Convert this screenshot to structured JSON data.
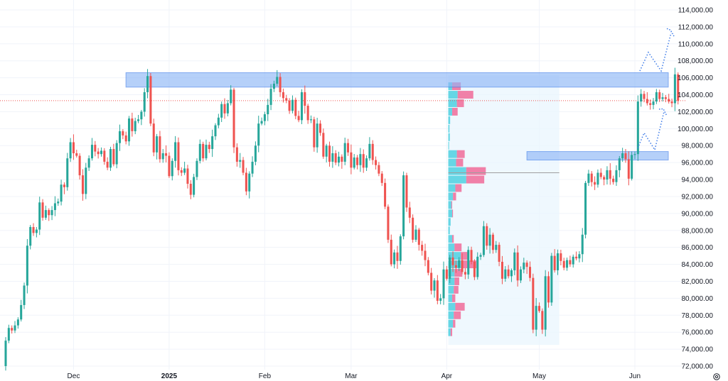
{
  "chart_data": {
    "type": "candlestick",
    "title": "",
    "xlabel": "",
    "ylabel": "",
    "ylim": [
      71500,
      115000
    ],
    "y_ticks": [
      72000,
      74000,
      76000,
      78000,
      80000,
      82000,
      84000,
      86000,
      88000,
      90000,
      92000,
      94000,
      96000,
      98000,
      100000,
      102000,
      104000,
      106000,
      108000,
      110000,
      112000,
      114000
    ],
    "y_tick_labels": [
      "72,000.00",
      "74,000.00",
      "76,000.00",
      "78,000.00",
      "80,000.00",
      "82,000.00",
      "84,000.00",
      "86,000.00",
      "88,000.00",
      "90,000.00",
      "92,000.00",
      "94,000.00",
      "96,000.00",
      "98,000.00",
      "100,000.00",
      "102,000.00",
      "104,000.00",
      "106,000.00",
      "108,000.00",
      "110,000.00",
      "112,000.00",
      "114,000.00"
    ],
    "x_labels": [
      {
        "text": "Dec",
        "bar": 22,
        "bold": false
      },
      {
        "text": "2025",
        "bar": 53,
        "bold": true
      },
      {
        "text": "Feb",
        "bar": 84,
        "bold": false
      },
      {
        "text": "Mar",
        "bar": 112,
        "bold": false
      },
      {
        "text": "Apr",
        "bar": 143,
        "bold": false
      },
      {
        "text": "May",
        "bar": 173,
        "bold": false
      },
      {
        "text": "Jun",
        "bar": 204,
        "bold": false
      }
    ],
    "x_range": [
      -2,
      223
    ],
    "grid": true,
    "closes": [
      75000,
      76500,
      76200,
      76800,
      77500,
      79200,
      81500,
      86200,
      88400,
      87700,
      88100,
      91300,
      89500,
      90400,
      89800,
      90400,
      91200,
      91400,
      93400,
      93100,
      96500,
      98400,
      97100,
      96800,
      94500,
      92300,
      95400,
      96500,
      98100,
      97300,
      97000,
      97400,
      96100,
      95400,
      97600,
      95800,
      98300,
      99700,
      99200,
      98500,
      101200,
      99700,
      100900,
      101100,
      102000,
      104300,
      106200,
      100600,
      97200,
      99100,
      96400,
      97100,
      96800,
      94400,
      96200,
      98400,
      95100,
      94800,
      95300,
      93500,
      92200,
      94300,
      96200,
      98200,
      96500,
      98100,
      97600,
      99100,
      100400,
      101300,
      102900,
      101800,
      103000,
      104600,
      97800,
      96100,
      96300,
      94800,
      92600,
      94700,
      96100,
      98000,
      100600,
      100900,
      101700,
      102800,
      104700,
      105300,
      106100,
      104300,
      103600,
      103300,
      102100,
      103400,
      101500,
      101000,
      104300,
      102700,
      101000,
      101100,
      97800,
      100600,
      99500,
      96700,
      98000,
      96100,
      97100,
      96000,
      96700,
      96100,
      98300,
      97200,
      95400,
      96600,
      95700,
      97000,
      95400,
      96500,
      98200,
      96300,
      95700,
      94700,
      93600,
      90800,
      86900,
      84000,
      85400,
      84400,
      87300,
      94500,
      90700,
      89500,
      86900,
      88100,
      86300,
      85600,
      84500,
      83000,
      80900,
      82100,
      79700,
      80000,
      83400,
      82300,
      84800,
      83900,
      83600,
      84500,
      83100,
      82800,
      85700,
      84300,
      82500,
      84900,
      85100,
      88500,
      86200,
      87500,
      85700,
      86300,
      84300,
      82300,
      83400,
      82600,
      83300,
      85400,
      82100,
      83400,
      84200,
      83700,
      82400,
      76300,
      79100,
      78500,
      76300,
      82600,
      79500,
      85000,
      83300,
      85300,
      84400,
      83600,
      84500,
      84000,
      84900,
      84700,
      85200,
      87500,
      93600,
      94700,
      93700,
      93400,
      94800,
      94300,
      94000,
      95100,
      94100,
      93700,
      95100,
      96500,
      97100,
      96400,
      94100,
      96900,
      97000,
      103200,
      104100,
      103500,
      103000,
      102800,
      103200,
      104300,
      103500,
      103700,
      103500,
      103200,
      103000,
      106400,
      103300
    ]
  }
}
